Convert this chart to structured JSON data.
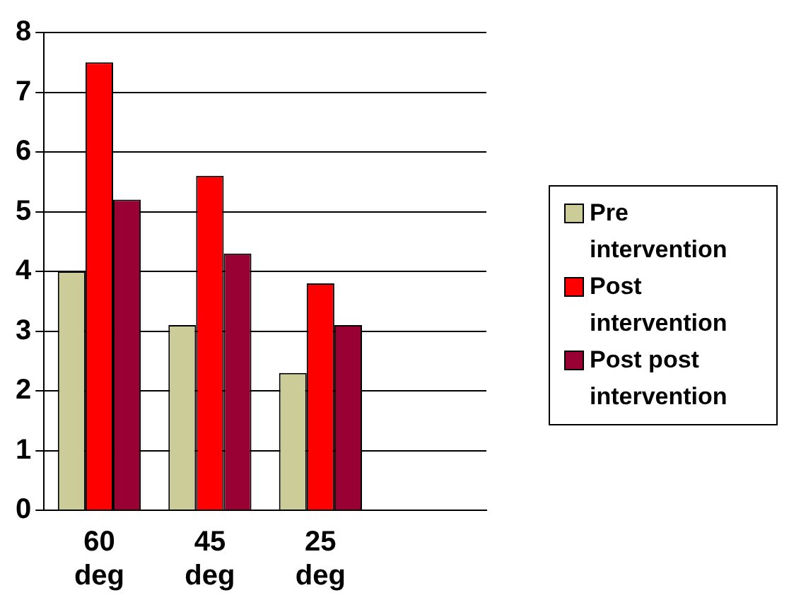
{
  "chart_data": {
    "type": "bar",
    "categories": [
      "60 deg",
      "45 deg",
      "25 deg",
      null
    ],
    "series": [
      {
        "name": "Pre intervention",
        "color": "#cccc99",
        "values": [
          4.0,
          3.1,
          2.3,
          null
        ]
      },
      {
        "name": "Post intervention",
        "color": "#ff0000",
        "values": [
          7.5,
          5.6,
          3.8,
          null
        ]
      },
      {
        "name": "Post post intervention",
        "color": "#990033",
        "values": [
          5.2,
          4.3,
          3.1,
          null
        ]
      }
    ],
    "ylim": [
      0,
      8
    ],
    "yticks": [
      0,
      1,
      2,
      3,
      4,
      5,
      6,
      7,
      8
    ],
    "grid": "y",
    "legend": "right"
  }
}
